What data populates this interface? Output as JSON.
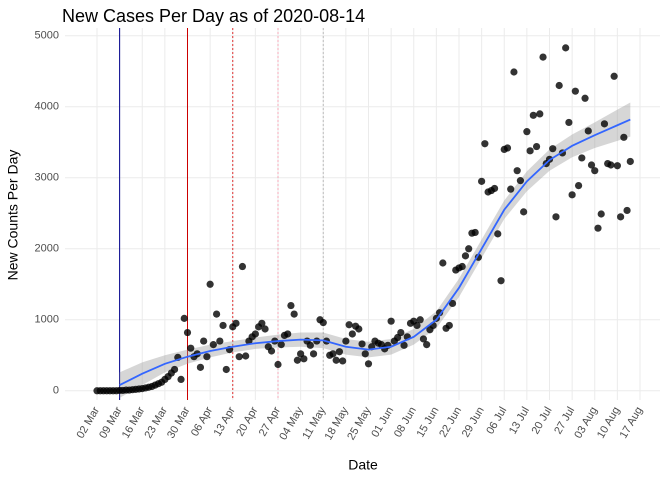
{
  "chart_data": {
    "type": "scatter",
    "title": "New Cases Per Day as of 2020-08-14",
    "x_label": "Date",
    "y_label": "New Counts Per Day",
    "color": "#000000",
    "x": [
      "02 Mar",
      "03 Mar",
      "04 Mar",
      "05 Mar",
      "06 Mar",
      "07 Mar",
      "08 Mar",
      "09 Mar",
      "10 Mar",
      "11 Mar",
      "12 Mar",
      "13 Mar",
      "14 Mar",
      "15 Mar",
      "16 Mar",
      "17 Mar",
      "18 Mar",
      "19 Mar",
      "20 Mar",
      "21 Mar",
      "22 Mar",
      "23 Mar",
      "24 Mar",
      "25 Mar",
      "26 Mar",
      "27 Mar",
      "28 Mar",
      "29 Mar",
      "30 Mar",
      "31 Mar",
      "01 Apr",
      "02 Apr",
      "03 Apr",
      "04 Apr",
      "05 Apr",
      "06 Apr",
      "07 Apr",
      "08 Apr",
      "09 Apr",
      "10 Apr",
      "11 Apr",
      "12 Apr",
      "13 Apr",
      "14 Apr",
      "15 Apr",
      "16 Apr",
      "17 Apr",
      "18 Apr",
      "19 Apr",
      "20 Apr",
      "21 Apr",
      "22 Apr",
      "23 Apr",
      "24 Apr",
      "25 Apr",
      "26 Apr",
      "27 Apr",
      "28 Apr",
      "29 Apr",
      "30 Apr",
      "01 May",
      "02 May",
      "03 May",
      "04 May",
      "05 May",
      "06 May",
      "07 May",
      "08 May",
      "09 May",
      "10 May",
      "11 May",
      "12 May",
      "13 May",
      "14 May",
      "15 May",
      "16 May",
      "17 May",
      "18 May",
      "19 May",
      "20 May",
      "21 May",
      "22 May",
      "23 May",
      "24 May",
      "25 May",
      "26 May",
      "27 May",
      "28 May",
      "29 May",
      "30 May",
      "31 May",
      "01 Jun",
      "02 Jun",
      "03 Jun",
      "04 Jun",
      "05 Jun",
      "06 Jun",
      "07 Jun",
      "08 Jun",
      "09 Jun",
      "10 Jun",
      "11 Jun",
      "12 Jun",
      "13 Jun",
      "14 Jun",
      "15 Jun",
      "16 Jun",
      "17 Jun",
      "18 Jun",
      "19 Jun",
      "20 Jun",
      "21 Jun",
      "22 Jun",
      "23 Jun",
      "24 Jun",
      "25 Jun",
      "26 Jun",
      "27 Jun",
      "28 Jun",
      "29 Jun",
      "30 Jun",
      "01 Jul",
      "02 Jul",
      "03 Jul",
      "04 Jul",
      "05 Jul",
      "06 Jul",
      "07 Jul",
      "08 Jul",
      "09 Jul",
      "10 Jul",
      "11 Jul",
      "12 Jul",
      "13 Jul",
      "14 Jul",
      "15 Jul",
      "16 Jul",
      "17 Jul",
      "18 Jul",
      "19 Jul",
      "20 Jul",
      "21 Jul",
      "22 Jul",
      "23 Jul",
      "24 Jul",
      "25 Jul",
      "26 Jul",
      "27 Jul",
      "28 Jul",
      "29 Jul",
      "30 Jul",
      "31 Jul",
      "01 Aug",
      "02 Aug",
      "03 Aug",
      "04 Aug",
      "05 Aug",
      "06 Aug",
      "07 Aug",
      "08 Aug",
      "09 Aug",
      "10 Aug",
      "11 Aug",
      "12 Aug",
      "13 Aug",
      "14 Aug"
    ],
    "values": [
      0,
      0,
      0,
      0,
      0,
      0,
      0,
      5,
      5,
      10,
      10,
      15,
      20,
      25,
      30,
      40,
      50,
      60,
      80,
      100,
      120,
      160,
      200,
      250,
      300,
      470,
      160,
      1020,
      820,
      600,
      480,
      520,
      330,
      700,
      480,
      1500,
      650,
      1080,
      700,
      920,
      300,
      580,
      900,
      950,
      480,
      1750,
      490,
      700,
      760,
      800,
      900,
      950,
      870,
      620,
      560,
      700,
      370,
      650,
      780,
      800,
      1200,
      1080,
      430,
      520,
      450,
      700,
      640,
      520,
      700,
      1000,
      960,
      700,
      500,
      520,
      430,
      550,
      420,
      700,
      930,
      800,
      910,
      870,
      660,
      520,
      380,
      620,
      700,
      670,
      650,
      590,
      640,
      980,
      700,
      750,
      820,
      640,
      760,
      950,
      980,
      920,
      1000,
      730,
      650,
      860,
      920,
      1020,
      1100,
      1800,
      880,
      920,
      1230,
      1700,
      1730,
      1750,
      1900,
      2000,
      2220,
      2230,
      1880,
      2950,
      3480,
      2800,
      2820,
      2850,
      2210,
      1550,
      3400,
      3420,
      2840,
      4490,
      3100,
      2960,
      2520,
      3650,
      3380,
      3880,
      3440,
      3900,
      4700,
      3200,
      3260,
      3410,
      2450,
      4300,
      3350,
      4830,
      3780,
      2760,
      4220,
      2890,
      3280,
      4120,
      3660,
      3180,
      3100,
      2290,
      2490,
      3760,
      3200,
      3180,
      4430,
      3170,
      2450,
      3570,
      2540,
      3230
    ],
    "smooth": {
      "color": "#3366ff",
      "band_color": "#999999",
      "x": [
        "09 Mar",
        "16 Mar",
        "23 Mar",
        "30 Mar",
        "06 Apr",
        "13 Apr",
        "20 Apr",
        "27 Apr",
        "04 May",
        "11 May",
        "18 May",
        "25 May",
        "01 Jun",
        "08 Jun",
        "15 Jun",
        "22 Jun",
        "29 Jun",
        "06 Jul",
        "13 Jul",
        "20 Jul",
        "27 Jul",
        "03 Aug",
        "10 Aug",
        "14 Aug"
      ],
      "values": [
        80,
        240,
        380,
        480,
        560,
        620,
        670,
        700,
        720,
        710,
        620,
        580,
        620,
        760,
        1000,
        1450,
        2000,
        2550,
        2950,
        3250,
        3450,
        3600,
        3740,
        3820
      ],
      "lower": [
        -100,
        80,
        260,
        380,
        470,
        540,
        590,
        610,
        620,
        600,
        510,
        470,
        510,
        650,
        880,
        1320,
        1870,
        2420,
        2810,
        3100,
        3290,
        3420,
        3520,
        3580
      ],
      "upper": [
        260,
        400,
        500,
        580,
        650,
        700,
        750,
        790,
        820,
        820,
        730,
        690,
        730,
        870,
        1120,
        1580,
        2130,
        2680,
        3090,
        3400,
        3610,
        3780,
        3960,
        4060
      ]
    },
    "vlines": [
      {
        "x": "09 Mar",
        "color": "#00008b",
        "dash": "solid"
      },
      {
        "x": "30 Mar",
        "color": "#cc0000",
        "dash": "solid"
      },
      {
        "x": "13 Apr",
        "color": "#e03030",
        "dash": "dotted"
      },
      {
        "x": "27 Apr",
        "color": "#f4a8b8",
        "dash": "dotted"
      },
      {
        "x": "11 May",
        "color": "#bbbbbb",
        "dash": "dotted"
      }
    ],
    "xticks": [
      "02 Mar",
      "09 Mar",
      "16 Mar",
      "23 Mar",
      "30 Mar",
      "06 Apr",
      "13 Apr",
      "20 Apr",
      "27 Apr",
      "04 May",
      "11 May",
      "18 May",
      "25 May",
      "01 Jun",
      "08 Jun",
      "15 Jun",
      "22 Jun",
      "29 Jun",
      "06 Jul",
      "13 Jul",
      "20 Jul",
      "27 Jul",
      "03 Aug",
      "10 Aug",
      "17 Aug"
    ],
    "ylim": [
      -130,
      5110
    ],
    "yticks": [
      0,
      1000,
      2000,
      3000,
      4000,
      5000
    ],
    "grid": true
  }
}
